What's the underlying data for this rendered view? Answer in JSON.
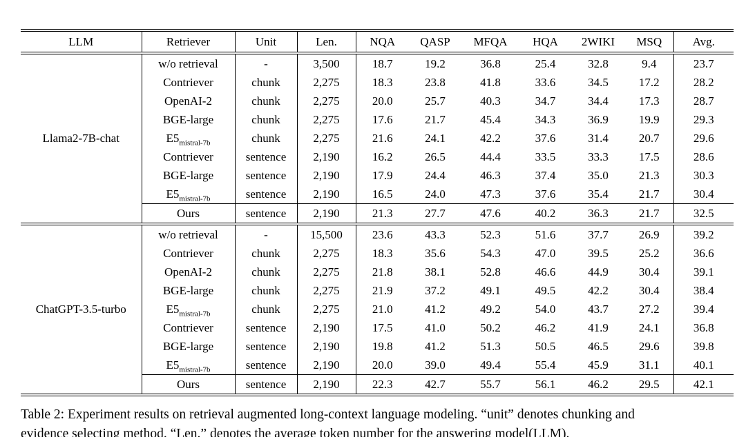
{
  "table": {
    "headers": [
      "LLM",
      "Retriever",
      "Unit",
      "Len.",
      "NQA",
      "QASP",
      "MFQA",
      "HQA",
      "2WIKI",
      "MSQ",
      "Avg."
    ],
    "groups": [
      {
        "llm": "Llama2-7B-chat",
        "rows": [
          {
            "retriever": "w/o retrieval",
            "sub": "",
            "unit": "-",
            "len": "3,500",
            "scores": [
              "18.7",
              "19.2",
              "36.8",
              "25.4",
              "32.8",
              "9.4",
              "23.7"
            ],
            "bold": [],
            "rule_above": false
          },
          {
            "retriever": "Contriever",
            "sub": "",
            "unit": "chunk",
            "len": "2,275",
            "scores": [
              "18.3",
              "23.8",
              "41.8",
              "33.6",
              "34.5",
              "17.2",
              "28.2"
            ],
            "bold": [],
            "rule_above": false
          },
          {
            "retriever": "OpenAI-2",
            "sub": "",
            "unit": "chunk",
            "len": "2,275",
            "scores": [
              "20.0",
              "25.7",
              "40.3",
              "34.7",
              "34.4",
              "17.3",
              "28.7"
            ],
            "bold": [],
            "rule_above": false
          },
          {
            "retriever": "BGE-large",
            "sub": "",
            "unit": "chunk",
            "len": "2,275",
            "scores": [
              "17.6",
              "21.7",
              "45.4",
              "34.3",
              "36.9",
              "19.9",
              "29.3"
            ],
            "bold": [
              4
            ],
            "rule_above": false
          },
          {
            "retriever": "E5",
            "sub": "mistral-7b",
            "unit": "chunk",
            "len": "2,275",
            "scores": [
              "21.6",
              "24.1",
              "42.2",
              "37.6",
              "31.4",
              "20.7",
              "29.6"
            ],
            "bold": [
              0
            ],
            "rule_above": false
          },
          {
            "retriever": "Contriever",
            "sub": "",
            "unit": "sentence",
            "len": "2,190",
            "scores": [
              "16.2",
              "26.5",
              "44.4",
              "33.5",
              "33.3",
              "17.5",
              "28.6"
            ],
            "bold": [],
            "rule_above": false
          },
          {
            "retriever": "BGE-large",
            "sub": "",
            "unit": "sentence",
            "len": "2,190",
            "scores": [
              "17.9",
              "24.4",
              "46.3",
              "37.4",
              "35.0",
              "21.3",
              "30.3"
            ],
            "bold": [],
            "rule_above": false
          },
          {
            "retriever": "E5",
            "sub": "mistral-7b",
            "unit": "sentence",
            "len": "2,190",
            "scores": [
              "16.5",
              "24.0",
              "47.3",
              "37.6",
              "35.4",
              "21.7",
              "30.4"
            ],
            "bold": [
              5
            ],
            "rule_above": false
          },
          {
            "retriever": "Ours",
            "sub": "",
            "unit": "sentence",
            "len": "2,190",
            "scores": [
              "21.3",
              "27.7",
              "47.6",
              "40.2",
              "36.3",
              "21.7",
              "32.5"
            ],
            "bold": [
              1,
              2,
              3,
              5,
              6
            ],
            "rule_above": true
          }
        ]
      },
      {
        "llm": "ChatGPT-3.5-turbo",
        "rows": [
          {
            "retriever": "w/o retrieval",
            "sub": "",
            "unit": "-",
            "len": "15,500",
            "scores": [
              "23.6",
              "43.3",
              "52.3",
              "51.6",
              "37.7",
              "26.9",
              "39.2"
            ],
            "bold": [
              0,
              1
            ],
            "rule_above": false
          },
          {
            "retriever": "Contriever",
            "sub": "",
            "unit": "chunk",
            "len": "2,275",
            "scores": [
              "18.3",
              "35.6",
              "54.3",
              "47.0",
              "39.5",
              "25.2",
              "36.6"
            ],
            "bold": [],
            "rule_above": false
          },
          {
            "retriever": "OpenAI-2",
            "sub": "",
            "unit": "chunk",
            "len": "2,275",
            "scores": [
              "21.8",
              "38.1",
              "52.8",
              "46.6",
              "44.9",
              "30.4",
              "39.1"
            ],
            "bold": [],
            "rule_above": false
          },
          {
            "retriever": "BGE-large",
            "sub": "",
            "unit": "chunk",
            "len": "2,275",
            "scores": [
              "21.9",
              "37.2",
              "49.1",
              "49.5",
              "42.2",
              "30.4",
              "38.4"
            ],
            "bold": [],
            "rule_above": false
          },
          {
            "retriever": "E5",
            "sub": "mistral-7b",
            "unit": "chunk",
            "len": "2,275",
            "scores": [
              "21.0",
              "41.2",
              "49.2",
              "54.0",
              "43.7",
              "27.2",
              "39.4"
            ],
            "bold": [],
            "rule_above": false
          },
          {
            "retriever": "Contriever",
            "sub": "",
            "unit": "sentence",
            "len": "2,190",
            "scores": [
              "17.5",
              "41.0",
              "50.2",
              "46.2",
              "41.9",
              "24.1",
              "36.8"
            ],
            "bold": [],
            "rule_above": false
          },
          {
            "retriever": "BGE-large",
            "sub": "",
            "unit": "sentence",
            "len": "2,190",
            "scores": [
              "19.8",
              "41.2",
              "51.3",
              "50.5",
              "46.5",
              "29.6",
              "39.8"
            ],
            "bold": [
              4
            ],
            "rule_above": false
          },
          {
            "retriever": "E5",
            "sub": "mistral-7b",
            "unit": "sentence",
            "len": "2,190",
            "scores": [
              "20.0",
              "39.0",
              "49.4",
              "55.4",
              "45.9",
              "31.1",
              "40.1"
            ],
            "bold": [
              5
            ],
            "rule_above": false
          },
          {
            "retriever": "Ours",
            "sub": "",
            "unit": "sentence",
            "len": "2,190",
            "scores": [
              "22.3",
              "42.7",
              "55.7",
              "56.1",
              "46.2",
              "29.5",
              "42.1"
            ],
            "bold": [
              2,
              3,
              6
            ],
            "rule_above": true
          }
        ]
      }
    ]
  },
  "caption": {
    "line1": "Table 2: Experiment results on retrieval augmented long-context language modeling. “unit” denotes chunking and",
    "line2": "evidence selecting method. “Len.” denotes the average token number for the answering model(LLM)."
  }
}
